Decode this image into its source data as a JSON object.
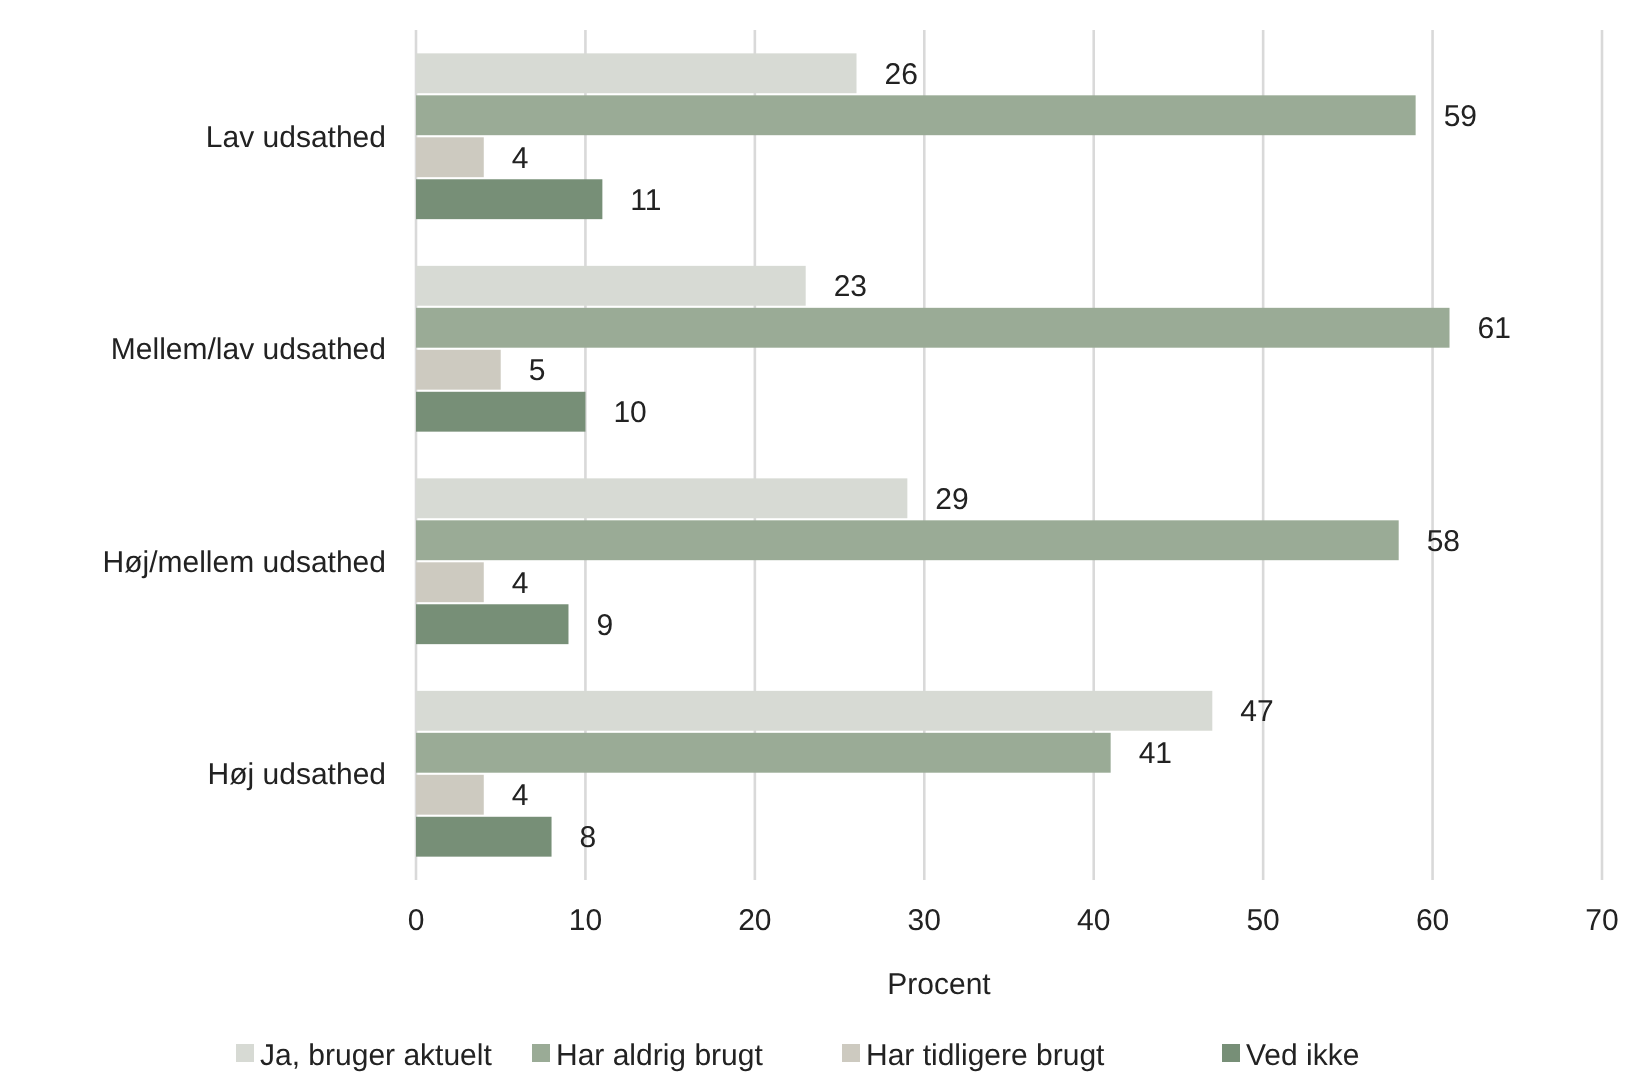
{
  "chart_data": {
    "type": "bar",
    "orientation": "horizontal",
    "xlabel": "Procent",
    "categories": [
      "Lav udsathed",
      "Mellem/lav udsathed",
      "Høj/mellem udsathed",
      "Høj udsathed"
    ],
    "series": [
      {
        "name": "Ja, bruger aktuelt",
        "color": "#d7dad4",
        "values": [
          26,
          23,
          29,
          47
        ]
      },
      {
        "name": "Har aldrig brugt",
        "color": "#9aab96",
        "values": [
          59,
          61,
          58,
          41
        ]
      },
      {
        "name": "Har tidligere brugt",
        "color": "#cdcac0",
        "values": [
          4,
          5,
          4,
          4
        ]
      },
      {
        "name": "Ved ikke",
        "color": "#778f77",
        "values": [
          11,
          10,
          9,
          8
        ]
      }
    ],
    "xlim": [
      0,
      70
    ],
    "xticks": [
      0,
      10,
      20,
      30,
      40,
      50,
      60,
      70
    ],
    "grid": "x",
    "legend": "bottom",
    "data_labels": true
  }
}
